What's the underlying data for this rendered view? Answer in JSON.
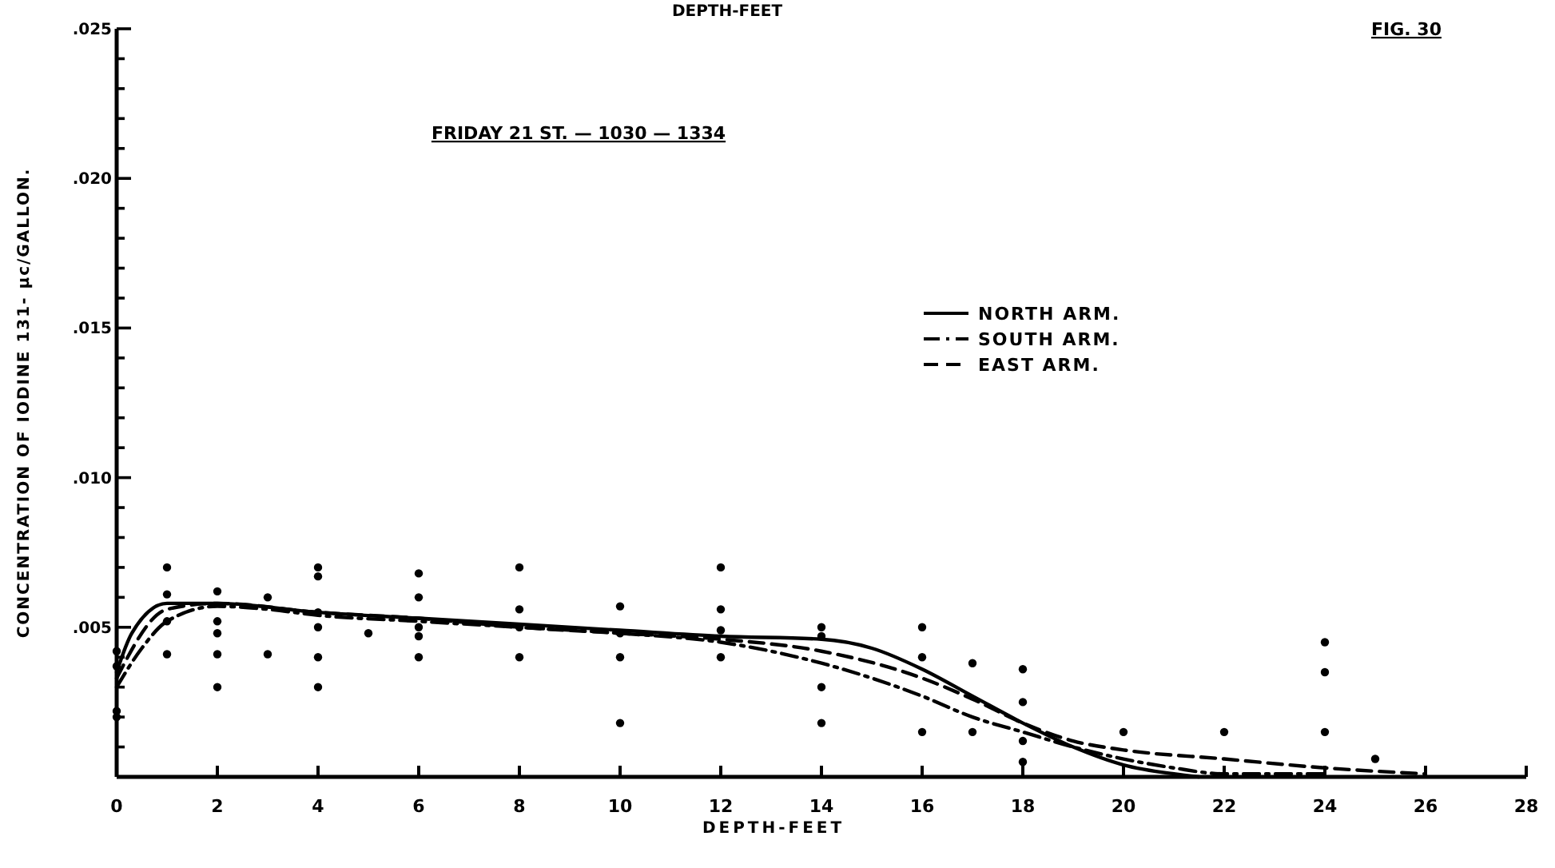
{
  "chart_data": {
    "type": "line",
    "title": "FRIDAY 21 ST. — 1030 — 1334",
    "xlabel": "DEPTH-FEET",
    "ylabel": "CONCENTRATION OF IODINE 131- μc/GALLON.",
    "annotations": [
      "FIG. 30",
      "DEPTH-FEET"
    ],
    "xlim": [
      0,
      28
    ],
    "xticks": [
      0,
      2,
      4,
      6,
      8,
      10,
      12,
      14,
      16,
      18,
      20,
      22,
      24,
      26,
      28
    ],
    "ylim": [
      0,
      0.025
    ],
    "yticks": [
      {
        "value": 0.001,
        "label": null
      },
      {
        "value": 0.002,
        "label": null
      },
      {
        "value": 0.003,
        "label": null
      },
      {
        "value": 0.004,
        "label": null
      },
      {
        "value": 0.005,
        "label": ".005"
      },
      {
        "value": 0.006,
        "label": null
      },
      {
        "value": 0.007,
        "label": null
      },
      {
        "value": 0.008,
        "label": null
      },
      {
        "value": 0.009,
        "label": null
      },
      {
        "value": 0.01,
        "label": ".010"
      },
      {
        "value": 0.011,
        "label": null
      },
      {
        "value": 0.012,
        "label": null
      },
      {
        "value": 0.013,
        "label": null
      },
      {
        "value": 0.014,
        "label": null
      },
      {
        "value": 0.015,
        "label": ".015"
      },
      {
        "value": 0.016,
        "label": null
      },
      {
        "value": 0.017,
        "label": null
      },
      {
        "value": 0.018,
        "label": null
      },
      {
        "value": 0.019,
        "label": null
      },
      {
        "value": 0.02,
        "label": ".020"
      },
      {
        "value": 0.021,
        "label": null
      },
      {
        "value": 0.022,
        "label": null
      },
      {
        "value": 0.023,
        "label": null
      },
      {
        "value": 0.024,
        "label": null
      },
      {
        "value": 0.025,
        "label": ".025"
      }
    ],
    "legend": "top right",
    "grid": false,
    "series": [
      {
        "name": "NORTH ARM.",
        "color": "#000000",
        "line_style": "solid",
        "x": [
          0,
          0.3,
          1,
          2,
          4,
          6,
          8,
          10,
          12,
          14,
          15,
          16,
          17,
          18,
          19,
          20,
          21,
          21.5
        ],
        "values": [
          0.0035,
          0.0048,
          0.0058,
          0.0058,
          0.0055,
          0.0053,
          0.0051,
          0.0049,
          0.0047,
          0.0046,
          0.0043,
          0.0036,
          0.0027,
          0.0018,
          0.001,
          0.0004,
          0.0001,
          0
        ]
      },
      {
        "name": "SOUTH ARM.",
        "color": "#000000",
        "line_style": "dashdot",
        "x": [
          0,
          0.5,
          1,
          2,
          3,
          4,
          6,
          8,
          10,
          12,
          13,
          14,
          15,
          16,
          17,
          18,
          19,
          20,
          21,
          22,
          24
        ],
        "values": [
          0.003,
          0.0043,
          0.0052,
          0.0057,
          0.0056,
          0.0054,
          0.0052,
          0.005,
          0.0048,
          0.0045,
          0.0042,
          0.0038,
          0.0033,
          0.0027,
          0.002,
          0.0015,
          0.001,
          0.0006,
          0.0003,
          0.0001,
          0.0001
        ]
      },
      {
        "name": "EAST ARM.",
        "color": "#000000",
        "line_style": "dashed",
        "x": [
          0,
          1,
          2,
          4,
          6,
          8,
          10,
          12,
          14,
          16,
          17,
          18,
          19,
          20,
          22,
          24,
          26
        ],
        "values": [
          0.0033,
          0.0056,
          0.0058,
          0.0055,
          0.0053,
          0.005,
          0.0048,
          0.0046,
          0.0042,
          0.0033,
          0.0026,
          0.0018,
          0.0012,
          0.0009,
          0.0006,
          0.0003,
          0.0001
        ]
      },
      {
        "type": "scatter",
        "marker": "circle",
        "color": "#000000",
        "x": [
          0,
          0,
          0,
          0,
          1,
          1,
          1,
          1,
          2,
          2,
          2,
          2,
          2,
          3,
          3,
          4,
          4,
          4,
          4,
          4,
          4,
          5,
          6,
          6,
          6,
          6,
          6,
          8,
          8,
          8,
          8,
          10,
          10,
          10,
          10,
          12,
          12,
          12,
          12,
          14,
          14,
          14,
          14,
          16,
          16,
          16,
          17,
          17,
          18,
          18,
          18,
          18,
          20,
          22,
          24,
          24,
          24,
          25
        ],
        "values": [
          0.0042,
          0.0037,
          0.0022,
          0.002,
          0.007,
          0.0061,
          0.0052,
          0.0041,
          0.0062,
          0.0052,
          0.0048,
          0.0041,
          0.003,
          0.006,
          0.0041,
          0.007,
          0.0067,
          0.0055,
          0.005,
          0.004,
          0.003,
          0.0048,
          0.0068,
          0.006,
          0.005,
          0.0047,
          0.004,
          0.007,
          0.0056,
          0.005,
          0.004,
          0.0057,
          0.0048,
          0.004,
          0.0018,
          0.007,
          0.0056,
          0.0049,
          0.004,
          0.005,
          0.0047,
          0.003,
          0.0018,
          0.005,
          0.004,
          0.0015,
          0.0038,
          0.0015,
          0.0036,
          0.0025,
          0.0012,
          0.0005,
          0.0015,
          0.0015,
          0.0045,
          0.0035,
          0.0015,
          0.0006
        ]
      }
    ]
  }
}
